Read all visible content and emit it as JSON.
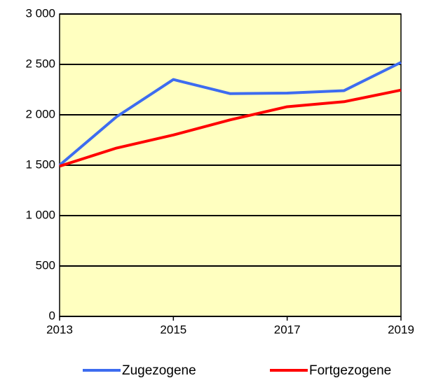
{
  "chart_data": {
    "type": "line",
    "x": [
      2013,
      2014,
      2015,
      2016,
      2017,
      2018,
      2019
    ],
    "series": [
      {
        "name": "Zugezogene",
        "color": "#3d6cf0",
        "values": [
          1500,
          1980,
          2350,
          2210,
          2215,
          2240,
          2520
        ]
      },
      {
        "name": "Fortgezogene",
        "color": "#ff0000",
        "values": [
          1490,
          1670,
          1800,
          1950,
          2080,
          2130,
          2245
        ]
      }
    ],
    "xlim": [
      2013,
      2019
    ],
    "xticks": [
      2013,
      2015,
      2017,
      2019
    ],
    "ylim": [
      0,
      3000
    ],
    "yticks": [
      0,
      500,
      {
        "value": 1000,
        "label": "1 000"
      },
      {
        "value": 1500,
        "label": "1 500"
      },
      {
        "value": 2000,
        "label": "2 000"
      },
      {
        "value": 2500,
        "label": "2 500"
      },
      {
        "value": 3000,
        "label": "3 000"
      }
    ],
    "grid": true,
    "legend": "bottom",
    "background": "#ffffc0"
  }
}
